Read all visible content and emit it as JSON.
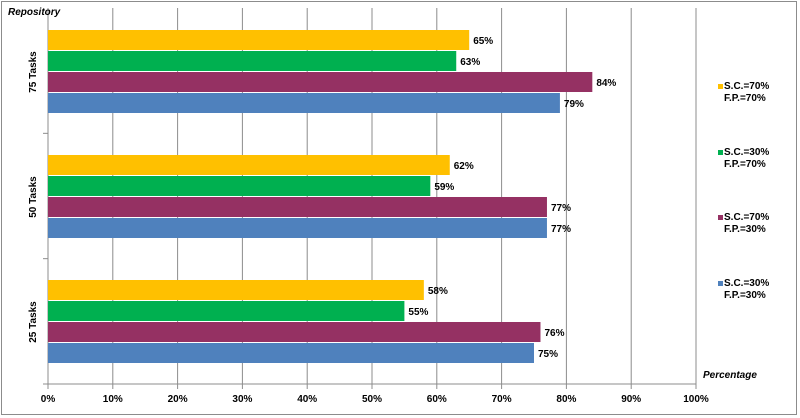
{
  "chart_data": {
    "type": "bar",
    "orientation": "horizontal",
    "title": "",
    "ylabel": "Repository",
    "xlabel": "Percentage",
    "categories": [
      "75 Tasks",
      "50 Tasks",
      "25 Tasks"
    ],
    "series": [
      {
        "name": "S.C.=70% F.P.=70%",
        "legend_lines": [
          "S.C.=70%",
          "F.P.=70%"
        ],
        "color": "#ffc000",
        "values": [
          65,
          62,
          58
        ]
      },
      {
        "name": "S.C.=30% F.P.=70%",
        "legend_lines": [
          "S.C.=30%",
          "F.P.=70%"
        ],
        "color": "#00b050",
        "values": [
          63,
          59,
          55
        ]
      },
      {
        "name": "S.C.=70% F.P.=30%",
        "legend_lines": [
          "S.C.=70%",
          "F.P.=30%"
        ],
        "color": "#953163",
        "values": [
          84,
          77,
          76
        ]
      },
      {
        "name": "S.C.=30% F.P.=30%",
        "legend_lines": [
          "S.C.=30%",
          "F.P.=30%"
        ],
        "color": "#4f81bd",
        "values": [
          79,
          77,
          75
        ]
      }
    ],
    "xlim": [
      0,
      100
    ],
    "xticks": [
      "0%",
      "10%",
      "20%",
      "30%",
      "40%",
      "50%",
      "60%",
      "70%",
      "80%",
      "90%",
      "100%"
    ],
    "value_suffix": "%",
    "grid": true,
    "legend_position": "right"
  }
}
